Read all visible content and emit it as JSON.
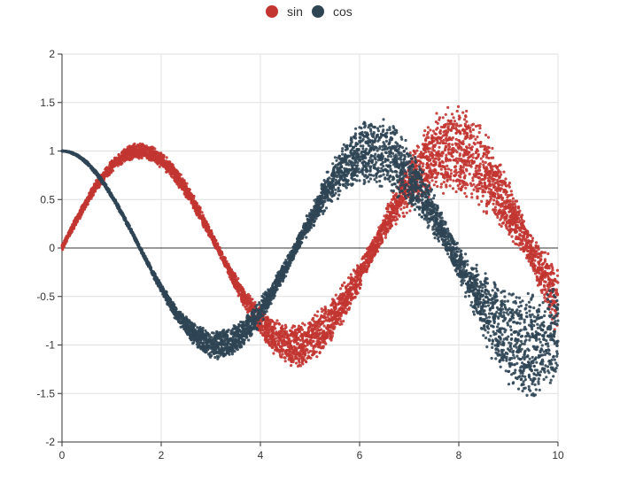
{
  "chart_data": {
    "type": "scatter",
    "title": "",
    "xlabel": "",
    "ylabel": "",
    "xlim": [
      0,
      10
    ],
    "ylim": [
      -2,
      2
    ],
    "x_ticks": [
      "0",
      "2",
      "4",
      "6",
      "8",
      "10"
    ],
    "y_ticks": [
      "2",
      "1.5",
      "1",
      "0.5",
      "0",
      "-0.5",
      "-1",
      "-1.5",
      "-2"
    ],
    "grid": true,
    "legend_position": "top-center",
    "series": [
      {
        "name": "sin",
        "color": "#c23531",
        "function": "sin(x)",
        "noise_band": [
          0.15,
          0.1,
          0.12,
          0.2,
          0.25,
          0.35,
          0.45,
          0.55,
          0.65,
          0.75,
          0.8
        ]
      },
      {
        "name": "cos",
        "color": "#2f4554",
        "function": "cos(x)",
        "noise_band": [
          0.0,
          0.05,
          0.12,
          0.2,
          0.25,
          0.35,
          0.45,
          0.55,
          0.65,
          0.75,
          0.8
        ]
      }
    ]
  }
}
